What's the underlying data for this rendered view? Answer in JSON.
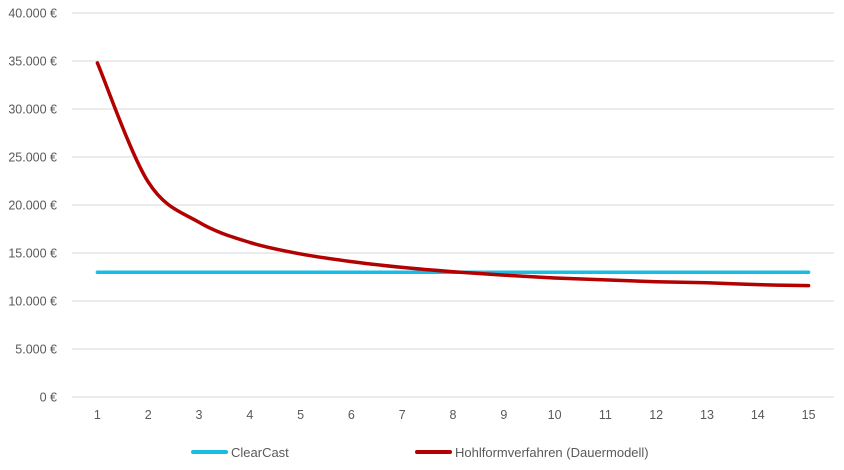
{
  "chart_data": {
    "type": "line",
    "categories": [
      "1",
      "2",
      "3",
      "4",
      "5",
      "6",
      "7",
      "8",
      "9",
      "10",
      "11",
      "12",
      "13",
      "14",
      "15"
    ],
    "series": [
      {
        "name": "ClearCast",
        "color": "#1BBCE4",
        "values": [
          13000,
          13000,
          13000,
          13000,
          13000,
          13000,
          13000,
          13000,
          13000,
          13000,
          13000,
          13000,
          13000,
          13000,
          13000
        ]
      },
      {
        "name": "Hohlformverfahren (Dauermodell)",
        "color": "#B30000",
        "values": [
          34800,
          22400,
          18200,
          16100,
          14900,
          14100,
          13500,
          13050,
          12700,
          12400,
          12200,
          12000,
          11900,
          11700,
          11600
        ]
      }
    ],
    "y_ticks": [
      "0 €",
      "5.000 €",
      "10.000 €",
      "15.000 €",
      "20.000 €",
      "25.000 €",
      "30.000 €",
      "35.000 €",
      "40.000 €"
    ],
    "ylim": [
      0,
      40000
    ],
    "grid": true,
    "grid_color": "#D9D9D9",
    "legend_position": "bottom"
  }
}
